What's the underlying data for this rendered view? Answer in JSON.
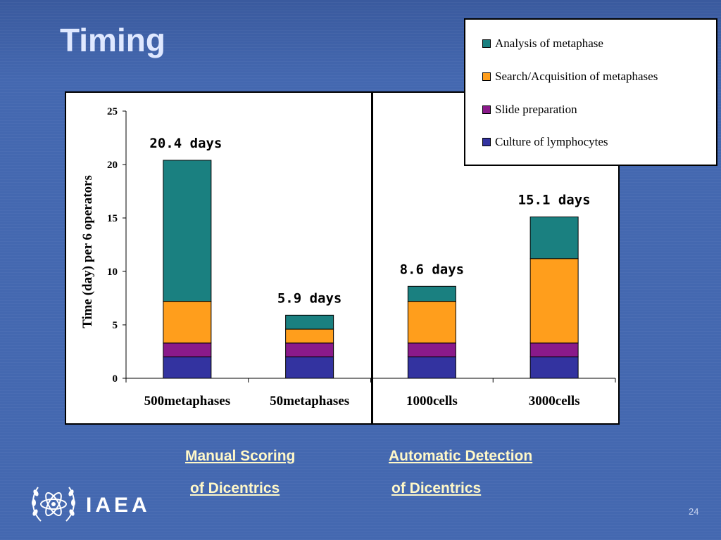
{
  "slide": {
    "title": "Timing",
    "page_number": "24",
    "logo_text": "IAEA"
  },
  "captions": {
    "manual_line1": "Manual Scoring",
    "manual_line2": "of Dicentrics",
    "auto_line1": "Automatic Detection ",
    "auto_line2": "of Dicentrics"
  },
  "chart_data": {
    "type": "bar",
    "stacked": true,
    "ylabel": "Time (day) per 6 operators",
    "xlabel": "",
    "ylim": [
      0,
      25
    ],
    "yticks": [
      "0",
      "5",
      "10",
      "15",
      "20",
      "25"
    ],
    "categories": [
      "500metaphases",
      "50metaphases",
      "1000cells",
      "3000cells"
    ],
    "totals_labels": [
      "20.4 days",
      "5.9 days",
      "8.6 days",
      "15.1 days"
    ],
    "series": [
      {
        "name": "Culture of lymphocytes",
        "color": "#3333a0",
        "values": [
          2.0,
          2.0,
          2.0,
          2.0
        ]
      },
      {
        "name": "Slide preparation",
        "color": "#8a1a8a",
        "values": [
          1.3,
          1.3,
          1.3,
          1.3
        ]
      },
      {
        "name": "Search/Acquisition of metaphases",
        "color": "#ff9e1c",
        "values": [
          3.9,
          1.3,
          3.9,
          7.9
        ]
      },
      {
        "name": "Analysis of metaphase",
        "color": "#1a8080",
        "values": [
          13.2,
          1.3,
          1.4,
          3.9
        ]
      }
    ],
    "legend_position": "top-right"
  }
}
